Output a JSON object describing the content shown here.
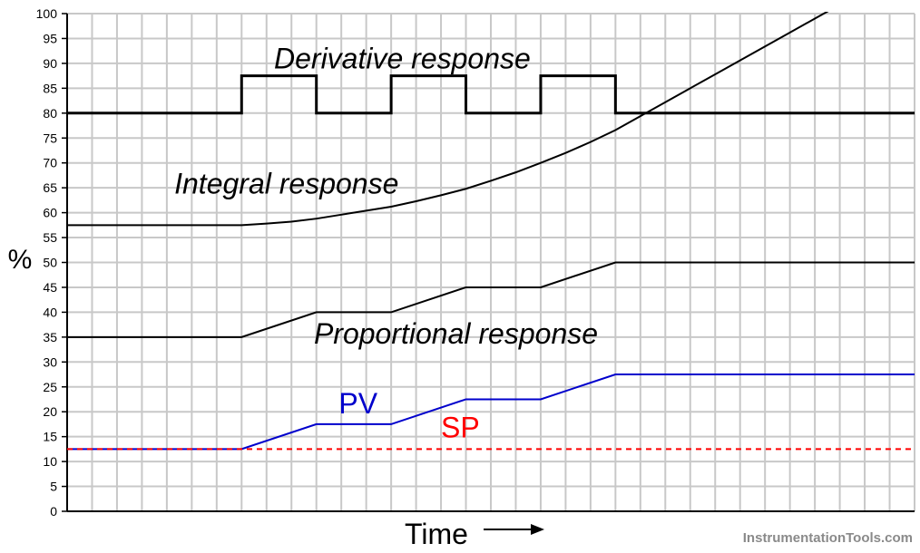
{
  "chart_data": {
    "type": "line",
    "title": "",
    "xlabel": "Time",
    "ylabel": "%",
    "ylim": [
      0,
      100
    ],
    "xlim": [
      0,
      34
    ],
    "yticks": [
      0,
      5,
      10,
      15,
      20,
      25,
      30,
      35,
      40,
      45,
      50,
      55,
      60,
      65,
      70,
      75,
      80,
      85,
      90,
      95,
      100
    ],
    "grid": true,
    "series": [
      {
        "key": "derivative",
        "color": "#000000",
        "width": 3,
        "dash": "",
        "points": [
          [
            0,
            80
          ],
          [
            7,
            80
          ],
          [
            7,
            87.5
          ],
          [
            10,
            87.5
          ],
          [
            10,
            80
          ],
          [
            13,
            80
          ],
          [
            13,
            87.5
          ],
          [
            16,
            87.5
          ],
          [
            16,
            80
          ],
          [
            19,
            80
          ],
          [
            19,
            87.5
          ],
          [
            22,
            87.5
          ],
          [
            22,
            80
          ],
          [
            34,
            80
          ]
        ]
      },
      {
        "key": "integral",
        "color": "#000000",
        "width": 2,
        "dash": "",
        "points": [
          [
            0,
            57.5
          ],
          [
            7,
            57.5
          ],
          [
            8,
            57.8
          ],
          [
            9,
            58.2
          ],
          [
            10,
            58.8
          ],
          [
            11,
            59.6
          ],
          [
            12,
            60.4
          ],
          [
            13,
            61.2
          ],
          [
            14,
            62.3
          ],
          [
            15,
            63.5
          ],
          [
            16,
            64.8
          ],
          [
            17,
            66.4
          ],
          [
            18,
            68.1
          ],
          [
            19,
            70
          ],
          [
            20,
            72
          ],
          [
            21,
            74.2
          ],
          [
            22,
            76.6
          ],
          [
            23,
            79.4
          ],
          [
            24,
            82.2
          ],
          [
            25,
            85
          ],
          [
            26,
            87.8
          ],
          [
            27,
            90.6
          ],
          [
            28,
            93.4
          ],
          [
            29,
            96.2
          ],
          [
            30,
            99
          ],
          [
            31,
            101.8
          ]
        ]
      },
      {
        "key": "proportional",
        "color": "#000000",
        "width": 2,
        "dash": "",
        "points": [
          [
            0,
            35
          ],
          [
            7,
            35
          ],
          [
            10,
            40
          ],
          [
            13,
            40
          ],
          [
            16,
            45
          ],
          [
            19,
            45
          ],
          [
            22,
            50
          ],
          [
            34,
            50
          ]
        ]
      },
      {
        "key": "pv",
        "color": "#0000cc",
        "width": 2,
        "dash": "",
        "points": [
          [
            0,
            12.5
          ],
          [
            7,
            12.5
          ],
          [
            10,
            17.5
          ],
          [
            13,
            17.5
          ],
          [
            16,
            22.5
          ],
          [
            19,
            22.5
          ],
          [
            22,
            27.5
          ],
          [
            34,
            27.5
          ]
        ]
      },
      {
        "key": "sp",
        "color": "#ff0000",
        "width": 2,
        "dash": "6,5",
        "points": [
          [
            0,
            12.5
          ],
          [
            34,
            12.5
          ]
        ]
      }
    ],
    "annotations": [
      {
        "key": "derivative",
        "text": "Derivative response",
        "x": 8.3,
        "y": 89,
        "color": "#000000",
        "italic": true
      },
      {
        "key": "integral",
        "text": "Integral response",
        "x": 4.3,
        "y": 63.8,
        "color": "#000000",
        "italic": true
      },
      {
        "key": "proportional",
        "text": "Proportional response",
        "x": 9.9,
        "y": 33.7,
        "color": "#000000",
        "italic": true
      },
      {
        "key": "pv",
        "text": "PV",
        "x": 10.9,
        "y": 19.7,
        "color": "#0000cc",
        "italic": false
      },
      {
        "key": "sp",
        "text": "SP",
        "x": 15,
        "y": 14.8,
        "color": "#ff0000",
        "italic": false
      }
    ]
  },
  "watermark": "InstrumentationTools.com",
  "colors": {
    "grid": "#c8c8c8",
    "axis": "#000000"
  }
}
